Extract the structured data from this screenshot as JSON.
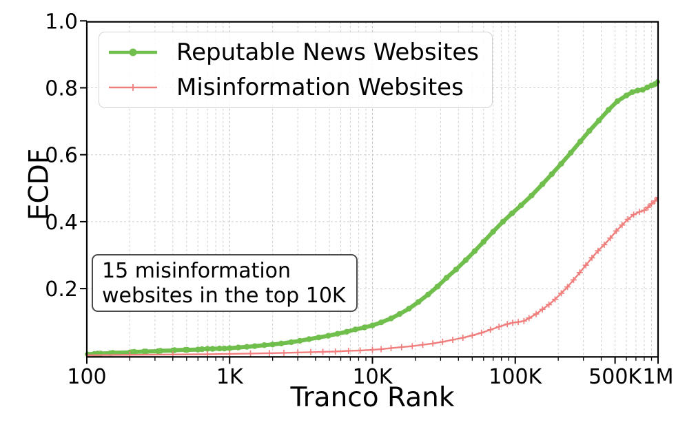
{
  "chart_data": {
    "type": "line",
    "title": "",
    "xlabel": "Tranco Rank",
    "ylabel": "ECDF",
    "x_scale": "log",
    "xlim": [
      100,
      1000000
    ],
    "ylim": [
      0,
      1.0
    ],
    "grid": {
      "style": "dashed",
      "y_values": [
        0.2,
        0.4,
        0.6,
        0.8
      ],
      "x_minor_multiples": [
        2,
        3,
        4,
        5,
        6,
        7,
        8,
        9
      ]
    },
    "x_ticks": [
      {
        "value": 100,
        "label": "100"
      },
      {
        "value": 1000,
        "label": "1K"
      },
      {
        "value": 10000,
        "label": "10K"
      },
      {
        "value": 100000,
        "label": "100K"
      },
      {
        "value": 500000,
        "label": "500K"
      },
      {
        "value": 1000000,
        "label": "1M"
      }
    ],
    "y_ticks": [
      {
        "value": 0.2,
        "label": "0.2"
      },
      {
        "value": 0.4,
        "label": "0.4"
      },
      {
        "value": 0.6,
        "label": "0.6"
      },
      {
        "value": 0.8,
        "label": "0.8"
      },
      {
        "value": 1.0,
        "label": "1.0"
      }
    ],
    "legend": {
      "position": "upper left"
    },
    "annotation": {
      "lines": [
        "15 misinformation",
        "websites in the top 10K"
      ]
    },
    "colors": {
      "grid_minor": "#cfcfcf",
      "grid_major": "#bfbfbf",
      "spine": "#000000"
    },
    "series": [
      {
        "name": "Reputable News Websites",
        "color": "#70bf4d",
        "marker": "circle",
        "line_width": 6,
        "points": [
          [
            100,
            0.004
          ],
          [
            113,
            0.005
          ],
          [
            119,
            0.006
          ],
          [
            125,
            0.006
          ],
          [
            146,
            0.007
          ],
          [
            152,
            0.008
          ],
          [
            200,
            0.009
          ],
          [
            207,
            0.01
          ],
          [
            215,
            0.011
          ],
          [
            252,
            0.012
          ],
          [
            260,
            0.012
          ],
          [
            316,
            0.013
          ],
          [
            328,
            0.014
          ],
          [
            400,
            0.015
          ],
          [
            412,
            0.016
          ],
          [
            490,
            0.017
          ],
          [
            505,
            0.017
          ],
          [
            600,
            0.018
          ],
          [
            640,
            0.019
          ],
          [
            700,
            0.02
          ],
          [
            760,
            0.02
          ],
          [
            850,
            0.021
          ],
          [
            920,
            0.021
          ],
          [
            1000,
            0.022
          ],
          [
            1150,
            0.024
          ],
          [
            1320,
            0.026
          ],
          [
            1500,
            0.028
          ],
          [
            1750,
            0.031
          ],
          [
            2000,
            0.033
          ],
          [
            2300,
            0.036
          ],
          [
            2700,
            0.04
          ],
          [
            3100,
            0.044
          ],
          [
            3600,
            0.049
          ],
          [
            4200,
            0.054
          ],
          [
            4900,
            0.059
          ],
          [
            5700,
            0.065
          ],
          [
            6600,
            0.071
          ],
          [
            7600,
            0.078
          ],
          [
            8800,
            0.084
          ],
          [
            10000,
            0.09
          ],
          [
            11500,
            0.099
          ],
          [
            13500,
            0.111
          ],
          [
            15500,
            0.124
          ],
          [
            18000,
            0.14
          ],
          [
            21000,
            0.16
          ],
          [
            24500,
            0.182
          ],
          [
            28500,
            0.206
          ],
          [
            33000,
            0.232
          ],
          [
            38500,
            0.257
          ],
          [
            45000,
            0.285
          ],
          [
            52000,
            0.312
          ],
          [
            60000,
            0.34
          ],
          [
            70000,
            0.37
          ],
          [
            82000,
            0.4
          ],
          [
            95000,
            0.425
          ],
          [
            110000,
            0.449
          ],
          [
            130000,
            0.478
          ],
          [
            155000,
            0.512
          ],
          [
            180000,
            0.542
          ],
          [
            210000,
            0.573
          ],
          [
            245000,
            0.606
          ],
          [
            285000,
            0.639
          ],
          [
            330000,
            0.671
          ],
          [
            385000,
            0.702
          ],
          [
            450000,
            0.734
          ],
          [
            520000,
            0.76
          ],
          [
            600000,
            0.777
          ],
          [
            660000,
            0.787
          ],
          [
            720000,
            0.792
          ],
          [
            780000,
            0.794
          ],
          [
            840000,
            0.801
          ],
          [
            900000,
            0.807
          ],
          [
            950000,
            0.811
          ],
          [
            1000000,
            0.818
          ]
        ]
      },
      {
        "name": "Misinformation Websites",
        "color": "#f07e7d",
        "marker": "plus",
        "line_width": 2.4,
        "points": [
          [
            100,
            0.001
          ],
          [
            200,
            0.002
          ],
          [
            400,
            0.003
          ],
          [
            700,
            0.004
          ],
          [
            1000,
            0.005
          ],
          [
            1400,
            0.006
          ],
          [
            1900,
            0.007
          ],
          [
            2400,
            0.008
          ],
          [
            3000,
            0.009
          ],
          [
            3700,
            0.01
          ],
          [
            4500,
            0.011
          ],
          [
            5500,
            0.012
          ],
          [
            6800,
            0.014
          ],
          [
            8200,
            0.015
          ],
          [
            10000,
            0.017
          ],
          [
            11500,
            0.019
          ],
          [
            13500,
            0.022
          ],
          [
            16000,
            0.025
          ],
          [
            19000,
            0.028
          ],
          [
            22500,
            0.032
          ],
          [
            26500,
            0.036
          ],
          [
            31000,
            0.041
          ],
          [
            36500,
            0.047
          ],
          [
            43000,
            0.053
          ],
          [
            50000,
            0.06
          ],
          [
            58000,
            0.068
          ],
          [
            67000,
            0.077
          ],
          [
            77000,
            0.086
          ],
          [
            88000,
            0.094
          ],
          [
            96000,
            0.098
          ],
          [
            105000,
            0.1
          ],
          [
            115000,
            0.103
          ],
          [
            125000,
            0.112
          ],
          [
            140000,
            0.124
          ],
          [
            155000,
            0.138
          ],
          [
            172000,
            0.152
          ],
          [
            190000,
            0.168
          ],
          [
            210000,
            0.186
          ],
          [
            232000,
            0.205
          ],
          [
            256000,
            0.226
          ],
          [
            283000,
            0.248
          ],
          [
            312000,
            0.27
          ],
          [
            344000,
            0.292
          ],
          [
            380000,
            0.313
          ],
          [
            420000,
            0.331
          ],
          [
            463000,
            0.351
          ],
          [
            510000,
            0.372
          ],
          [
            560000,
            0.39
          ],
          [
            615000,
            0.407
          ],
          [
            675000,
            0.421
          ],
          [
            740000,
            0.429
          ],
          [
            800000,
            0.434
          ],
          [
            850000,
            0.443
          ],
          [
            900000,
            0.453
          ],
          [
            950000,
            0.462
          ],
          [
            1000000,
            0.472
          ]
        ]
      }
    ]
  }
}
